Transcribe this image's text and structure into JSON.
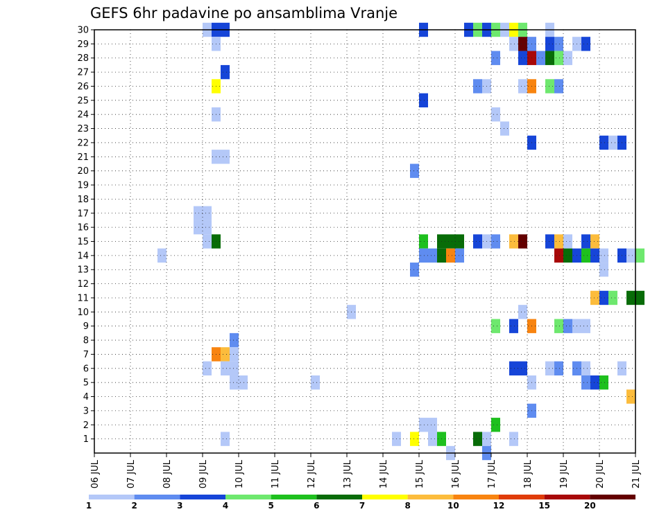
{
  "chart_data": {
    "type": "heatmap",
    "title": "GEFS 6hr padavine po ansamblima Vranje",
    "xlabel": "",
    "ylabel": "",
    "x_tick_labels": [
      "06 JUL",
      "07 JUL",
      "08 JUL",
      "09 JUL",
      "10 JUL",
      "11 JUL",
      "12 JUL",
      "13 JUL",
      "14 JUL",
      "15 JUL",
      "16 JUL",
      "17 JUL",
      "18 JUL",
      "19 JUL",
      "20 JUL",
      "21 JUL"
    ],
    "y_tick_labels": [
      "1",
      "2",
      "3",
      "4",
      "5",
      "6",
      "7",
      "8",
      "9",
      "10",
      "11",
      "12",
      "13",
      "14",
      "15",
      "16",
      "17",
      "18",
      "19",
      "20",
      "21",
      "22",
      "23",
      "24",
      "25",
      "26",
      "27",
      "28",
      "29",
      "30"
    ],
    "x_range_days": [
      0,
      15
    ],
    "y_range": [
      0,
      30
    ],
    "time_step_hours": 6,
    "grid": true,
    "legend": {
      "position": "bottom",
      "labels": [
        "1",
        "2",
        "3",
        "4",
        "5",
        "6",
        "7",
        "8",
        "10",
        "12",
        "15",
        "20"
      ],
      "colors": [
        "#b4c8f8",
        "#5f8cf0",
        "#1645d8",
        "#6ee86e",
        "#1ec01e",
        "#086c08",
        "#ffff00",
        "#fcbc3c",
        "#f88410",
        "#e03c08",
        "#a80808",
        "#640000"
      ]
    },
    "cells": [
      [
        3,
        30,
        1
      ],
      [
        3.25,
        30,
        3
      ],
      [
        3.5,
        30,
        3
      ],
      [
        3.25,
        29,
        1
      ],
      [
        3.5,
        27,
        3
      ],
      [
        3.25,
        26,
        7
      ],
      [
        3.25,
        24,
        1
      ],
      [
        3.25,
        21,
        1
      ],
      [
        3.5,
        21,
        1
      ],
      [
        2.75,
        17,
        1
      ],
      [
        3,
        17,
        1
      ],
      [
        2.75,
        16,
        1
      ],
      [
        3,
        16,
        1
      ],
      [
        3,
        15,
        1
      ],
      [
        3.25,
        15,
        6
      ],
      [
        1.75,
        14,
        1
      ],
      [
        3.75,
        8,
        2
      ],
      [
        3.25,
        7,
        10
      ],
      [
        3.5,
        7,
        8
      ],
      [
        3.75,
        7,
        1
      ],
      [
        3,
        6,
        1
      ],
      [
        3.5,
        6,
        1
      ],
      [
        3.75,
        6,
        1
      ],
      [
        3.75,
        5,
        1
      ],
      [
        4,
        5,
        1
      ],
      [
        3.5,
        1,
        1
      ],
      [
        6,
        5,
        1
      ],
      [
        7,
        10,
        1
      ],
      [
        9,
        30,
        3
      ],
      [
        9,
        25,
        3
      ],
      [
        8.75,
        20,
        2
      ],
      [
        9,
        15,
        5
      ],
      [
        9,
        14,
        2
      ],
      [
        9.25,
        14,
        2
      ],
      [
        8.75,
        13,
        2
      ],
      [
        9,
        2,
        1
      ],
      [
        9.25,
        2,
        1
      ],
      [
        8.25,
        1,
        1
      ],
      [
        8.75,
        1,
        7
      ],
      [
        9.25,
        1,
        1
      ],
      [
        9.5,
        1,
        5
      ],
      [
        9.5,
        15,
        6
      ],
      [
        9.75,
        15,
        6
      ],
      [
        10,
        15,
        6
      ],
      [
        9.5,
        14,
        6
      ],
      [
        9.75,
        14,
        10
      ],
      [
        10,
        14,
        2
      ],
      [
        9.75,
        0,
        1
      ],
      [
        10.25,
        30,
        3
      ],
      [
        10.5,
        30,
        4
      ],
      [
        10.75,
        30,
        3
      ],
      [
        11,
        30,
        4
      ],
      [
        11.25,
        30,
        1
      ],
      [
        11.5,
        30,
        7
      ],
      [
        11.75,
        30,
        4
      ],
      [
        11.5,
        29,
        1
      ],
      [
        11.75,
        29,
        20
      ],
      [
        12,
        29,
        2
      ],
      [
        11,
        28,
        2
      ],
      [
        11.75,
        28,
        3
      ],
      [
        12,
        28,
        15
      ],
      [
        12.25,
        28,
        2
      ],
      [
        10.5,
        26,
        2
      ],
      [
        10.75,
        26,
        1
      ],
      [
        11.75,
        26,
        1
      ],
      [
        12,
        26,
        10
      ],
      [
        11,
        24,
        1
      ],
      [
        11.25,
        23,
        1
      ],
      [
        10.5,
        15,
        3
      ],
      [
        10.75,
        15,
        1
      ],
      [
        11,
        15,
        2
      ],
      [
        11.5,
        15,
        8
      ],
      [
        11.75,
        15,
        20
      ],
      [
        11,
        9,
        4
      ],
      [
        11.5,
        9,
        3
      ],
      [
        12,
        9,
        10
      ],
      [
        11.75,
        10,
        1
      ],
      [
        11.75,
        6,
        3
      ],
      [
        11.5,
        6,
        3
      ],
      [
        12,
        5,
        1
      ],
      [
        12,
        3,
        2
      ],
      [
        11,
        2,
        5
      ],
      [
        10.5,
        1,
        6
      ],
      [
        10.75,
        1,
        1
      ],
      [
        11.5,
        1,
        1
      ],
      [
        10.75,
        0,
        2
      ],
      [
        12.5,
        30,
        1
      ],
      [
        12.5,
        29,
        3
      ],
      [
        12.75,
        29,
        2
      ],
      [
        13.25,
        29,
        1
      ],
      [
        13.5,
        29,
        3
      ],
      [
        12.5,
        28,
        6
      ],
      [
        12.75,
        28,
        4
      ],
      [
        13,
        28,
        1
      ],
      [
        12.5,
        26,
        4
      ],
      [
        12.75,
        26,
        2
      ],
      [
        12,
        22,
        3
      ],
      [
        12.5,
        15,
        3
      ],
      [
        12.75,
        15,
        8
      ],
      [
        13,
        15,
        1
      ],
      [
        13.5,
        15,
        3
      ],
      [
        13.75,
        15,
        8
      ],
      [
        12.75,
        14,
        15
      ],
      [
        13,
        14,
        6
      ],
      [
        13.25,
        14,
        3
      ],
      [
        13.5,
        14,
        5
      ],
      [
        13.75,
        14,
        3
      ],
      [
        12.75,
        9,
        4
      ],
      [
        13,
        9,
        2
      ],
      [
        13.25,
        9,
        1
      ],
      [
        13.5,
        9,
        1
      ],
      [
        12.5,
        6,
        1
      ],
      [
        12.75,
        6,
        2
      ],
      [
        13.25,
        6,
        2
      ],
      [
        13.5,
        6,
        1
      ],
      [
        13.75,
        5,
        3
      ],
      [
        13.5,
        5,
        2
      ],
      [
        14,
        22,
        3
      ],
      [
        14.25,
        22,
        1
      ],
      [
        14.5,
        22,
        3
      ],
      [
        14,
        14,
        1
      ],
      [
        14.5,
        14,
        3
      ],
      [
        14.75,
        14,
        1
      ],
      [
        15,
        14,
        4
      ],
      [
        14,
        13,
        1
      ],
      [
        13.75,
        11,
        8
      ],
      [
        14,
        11,
        3
      ],
      [
        14.25,
        11,
        4
      ],
      [
        14.75,
        11,
        6
      ],
      [
        15,
        11,
        6
      ],
      [
        14.5,
        6,
        1
      ],
      [
        14,
        5,
        5
      ],
      [
        14.75,
        4,
        8
      ]
    ]
  }
}
